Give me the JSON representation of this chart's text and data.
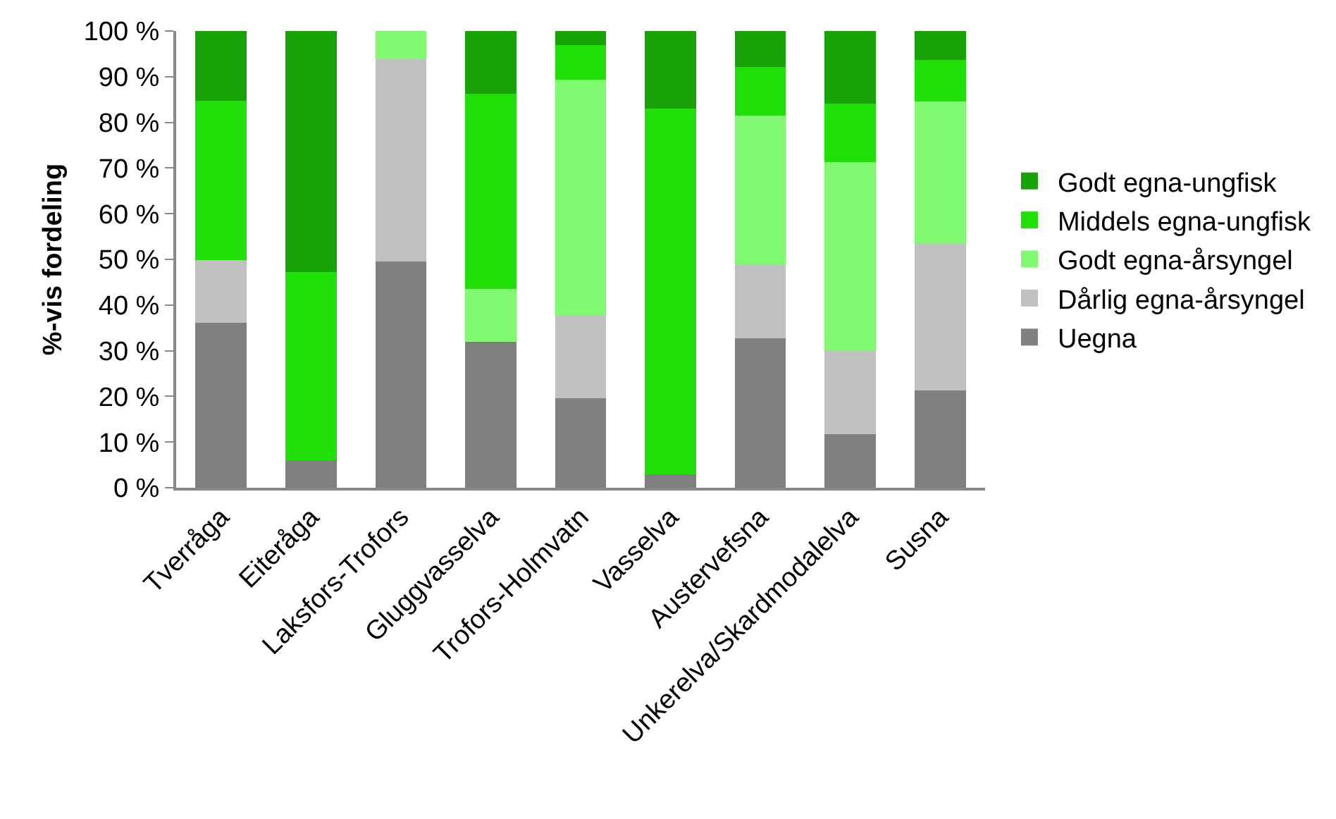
{
  "chart_data": {
    "type": "bar",
    "stacked": true,
    "ylabel": "%-vis fordeling",
    "categories": [
      "Tverråga",
      "Eiteråga",
      "Laksfors-Trofors",
      "Gluggvasselva",
      "Trofors-Holmvatn",
      "Vasselva",
      "Austervefsna",
      "Unkerelva/Skardmodalelva",
      "Susna"
    ],
    "series": [
      {
        "name": "Uegna",
        "color": "#808080",
        "values": [
          36.1,
          6.0,
          49.5,
          32.0,
          19.6,
          2.9,
          32.7,
          11.7,
          21.3
        ]
      },
      {
        "name": "Dårlig egna-årsyngel",
        "color": "#c0c0c0",
        "values": [
          13.7,
          0,
          44.3,
          0,
          18.2,
          0,
          16.2,
          18.4,
          32.2
        ]
      },
      {
        "name": "Godt egna-årsyngel",
        "color": "#80fa70",
        "values": [
          0,
          0,
          6.2,
          11.5,
          51.5,
          0,
          32.6,
          41.2,
          31.1
        ]
      },
      {
        "name": "Middels egna-ungfisk",
        "color": "#20e008",
        "values": [
          34.9,
          41.3,
          0,
          42.7,
          7.6,
          80.1,
          10.6,
          12.8,
          9.0
        ]
      },
      {
        "name": "Godt egna-ungfisk",
        "color": "#18a208",
        "values": [
          15.3,
          52.7,
          0,
          13.8,
          3.1,
          17.0,
          7.9,
          15.9,
          6.4
        ]
      }
    ],
    "ylim": [
      0,
      100
    ],
    "yticks": [
      {
        "value": 0,
        "label": "0 %"
      },
      {
        "value": 10,
        "label": "10 %"
      },
      {
        "value": 20,
        "label": "20 %"
      },
      {
        "value": 30,
        "label": "30 %"
      },
      {
        "value": 40,
        "label": "40 %"
      },
      {
        "value": 50,
        "label": "50 %"
      },
      {
        "value": 60,
        "label": "60 %"
      },
      {
        "value": 70,
        "label": "70 %"
      },
      {
        "value": 80,
        "label": "80 %"
      },
      {
        "value": 90,
        "label": "90 %"
      },
      {
        "value": 100,
        "label": "100 %"
      }
    ],
    "grid": false,
    "legend": "right"
  }
}
